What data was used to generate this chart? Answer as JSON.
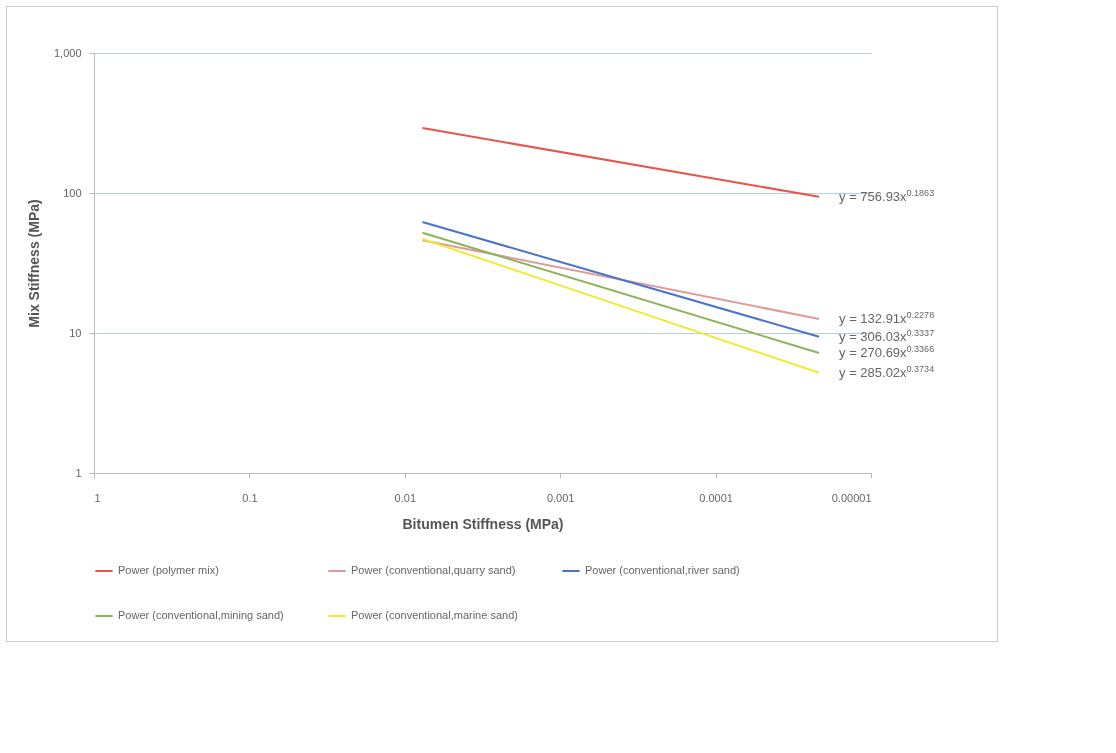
{
  "chart_data": {
    "type": "line",
    "xlabel": "Bitumen Stiffness (MPa)",
    "ylabel": "Mix Stiffness (MPa)",
    "x": [
      0.0077,
      2.16e-05
    ],
    "series": [
      {
        "name": "Power (polymer mix)",
        "color": "#e8554a",
        "values": [
          291,
          94
        ]
      },
      {
        "name": "Power (conventional,quarry sand)",
        "color": "#e09a9a",
        "values": [
          46,
          12.6
        ]
      },
      {
        "name": "Power (conventional,river sand)",
        "color": "#4a74c8",
        "values": [
          62,
          9.4
        ]
      },
      {
        "name": "Power (conventional,mining sand)",
        "color": "#8ab35a",
        "values": [
          52,
          7.2
        ]
      },
      {
        "name": "Power (conventional,marine sand)",
        "color": "#ecec30",
        "values": [
          47,
          5.2
        ]
      }
    ],
    "log": "xy",
    "xlim": [
      1,
      1e-05
    ],
    "xticks": [
      1,
      0.1,
      0.01,
      0.001,
      0.0001,
      {
        "value": 1e-05,
        "label": "0.00001"
      }
    ],
    "ylim": [
      1,
      1000
    ],
    "yticks": [
      1,
      10,
      100,
      {
        "value": 1000,
        "label": "1,000"
      }
    ],
    "grid": "y",
    "legend": "bottom",
    "marker": "none",
    "line_style": "solid",
    "annotations": [
      "y = 756.93x$^{0.1863}$",
      "y = 132.91x$^{0.2278}$",
      "y = 306.03x$^{0.3337}$",
      "y = 270.69x$^{0.3366}$",
      "y = 285.02x$^{0.3734}$"
    ]
  }
}
